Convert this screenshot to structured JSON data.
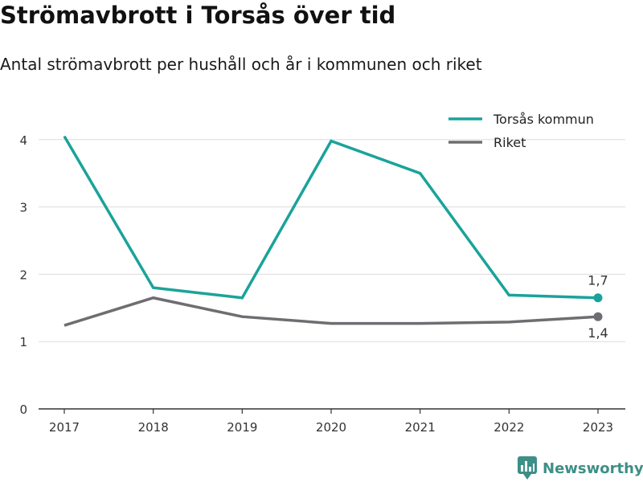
{
  "chart_data": {
    "type": "line",
    "title": "Strömavbrott i Torsås över tid",
    "subtitle": "Antal strömavbrott per hushåll och år i kommunen och riket",
    "x": [
      "2017",
      "2018",
      "2019",
      "2020",
      "2021",
      "2022",
      "2023"
    ],
    "series": [
      {
        "name": "Torsås kommun",
        "color": "#1aa39a",
        "values": [
          4.05,
          1.8,
          1.65,
          3.98,
          3.5,
          1.69,
          1.65
        ],
        "end_label": "1,7"
      },
      {
        "name": "Riket",
        "color": "#6e6d71",
        "values": [
          1.24,
          1.65,
          1.37,
          1.27,
          1.27,
          1.29,
          1.37
        ],
        "end_label": "1,4"
      }
    ],
    "y_ticks": [
      "0",
      "1",
      "2",
      "3",
      "4"
    ],
    "ylim": [
      0,
      4.4
    ],
    "grid": true,
    "legend_position": "top-right"
  },
  "brand": {
    "name": "Newsworthy",
    "color": "#3d8f87"
  }
}
